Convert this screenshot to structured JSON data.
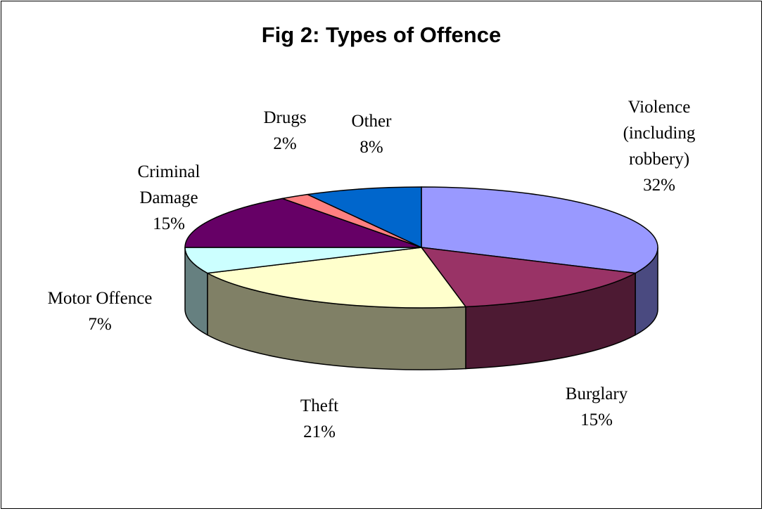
{
  "chart_data": {
    "type": "pie",
    "style": "3d",
    "title": "Fig 2: Types of Offence",
    "slices": [
      {
        "name": "Violence (including robbery)",
        "label_lines": [
          "Violence",
          "(including",
          "robbery)"
        ],
        "value_label": "32%",
        "value": 32,
        "color": "#9999FF",
        "side_color": "#4A4A80"
      },
      {
        "name": "Burglary",
        "label_lines": [
          "Burglary"
        ],
        "value_label": "15%",
        "value": 15,
        "color": "#993366",
        "side_color": "#4D1A33"
      },
      {
        "name": "Theft",
        "label_lines": [
          "Theft"
        ],
        "value_label": "21%",
        "value": 21,
        "color": "#FFFFCC",
        "side_color": "#808066"
      },
      {
        "name": "Motor Offence",
        "label_lines": [
          "Motor Offence"
        ],
        "value_label": "7%",
        "value": 7,
        "color": "#CCFFFF",
        "side_color": "#668080"
      },
      {
        "name": "Criminal Damage",
        "label_lines": [
          "Criminal",
          "Damage"
        ],
        "value_label": "15%",
        "value": 15,
        "color": "#660066",
        "side_color": "#330033"
      },
      {
        "name": "Drugs",
        "label_lines": [
          "Drugs"
        ],
        "value_label": "2%",
        "value": 2,
        "color": "#FF8080",
        "side_color": "#804040"
      },
      {
        "name": "Other",
        "label_lines": [
          "Other"
        ],
        "value_label": "8%",
        "value": 8,
        "color": "#0066CC",
        "side_color": "#003366"
      }
    ]
  }
}
